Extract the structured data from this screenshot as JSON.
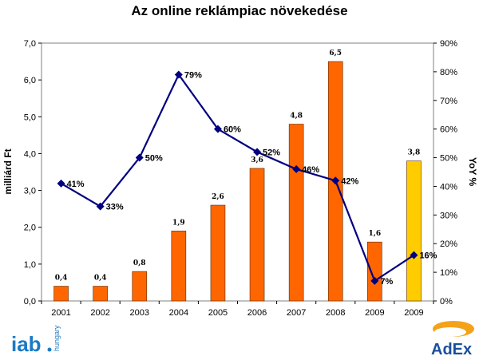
{
  "chart_data": {
    "type": "bar",
    "title": "Az online reklámpiac növekedése",
    "categories": [
      "2001",
      "2002",
      "2003",
      "2004",
      "2005",
      "2006",
      "2007",
      "2008",
      "2009",
      "2009"
    ],
    "values": [
      0.4,
      0.4,
      0.8,
      1.9,
      2.6,
      3.6,
      4.8,
      6.5,
      1.6,
      3.8
    ],
    "value_labels": [
      "0,4",
      "0,4",
      "0,8",
      "1,9",
      "2,6",
      "3,6",
      "4,8",
      "6,5",
      "1,6",
      "3,8"
    ],
    "bar_colors": [
      "#ff6600",
      "#ff6600",
      "#ff6600",
      "#ff6600",
      "#ff6600",
      "#ff6600",
      "#ff6600",
      "#ff6600",
      "#ff6600",
      "#ffcc00"
    ],
    "ylabel": "milliárd Ft",
    "ylim": [
      0,
      7
    ],
    "yticks": [
      "0,0",
      "1,0",
      "2,0",
      "3,0",
      "4,0",
      "5,0",
      "6,0",
      "7,0"
    ],
    "y2label": "YoY %",
    "y2lim": [
      0,
      90
    ],
    "y2ticks": [
      "0%",
      "10%",
      "20%",
      "30%",
      "40%",
      "50%",
      "60%",
      "70%",
      "80%",
      "90%"
    ],
    "line_series": {
      "type": "line",
      "axis": "right",
      "color": "#000080",
      "values": [
        41,
        33,
        50,
        79,
        60,
        52,
        46,
        42,
        7,
        16
      ],
      "labels": [
        "41%",
        "33%",
        "50%",
        "79%",
        "60%",
        "52%",
        "46%",
        "42%",
        "7%",
        "16%"
      ]
    },
    "grid": false,
    "legend": "none"
  },
  "logos": {
    "left": {
      "main": "iab",
      "sub": "hungary"
    },
    "right": {
      "text": "AdEx"
    }
  }
}
